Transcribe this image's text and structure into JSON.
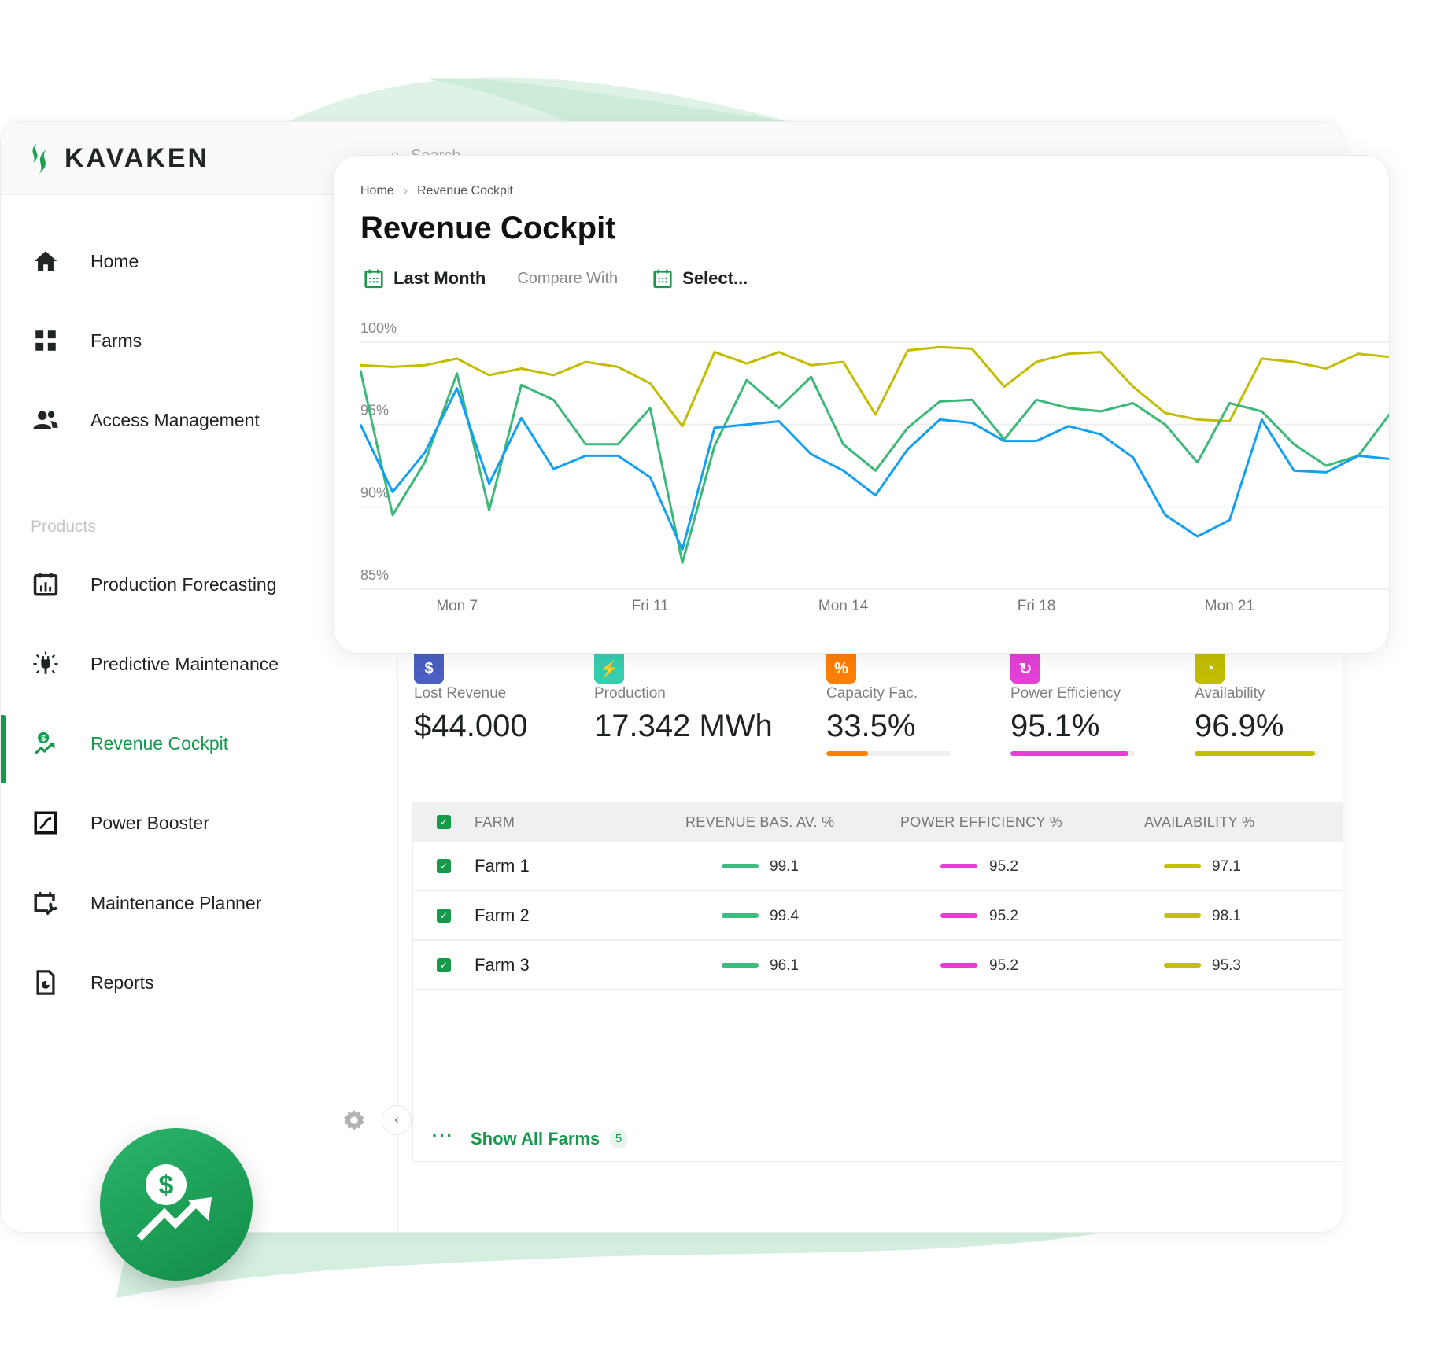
{
  "app": {
    "brand": "KAVAKEN",
    "brand_color": "#159a4c",
    "search_placeholder": "Search"
  },
  "sidebar": {
    "items": [
      {
        "label": "Home",
        "icon": "home-icon"
      },
      {
        "label": "Farms",
        "icon": "grid-icon"
      },
      {
        "label": "Access Management",
        "icon": "users-icon"
      }
    ],
    "section_label": "Products",
    "products": [
      {
        "label": "Production Forecasting",
        "icon": "calendar-chart-icon"
      },
      {
        "label": "Predictive Maintenance",
        "icon": "plug-alert-icon"
      },
      {
        "label": "Revenue Cockpit",
        "icon": "revenue-icon",
        "active": true
      },
      {
        "label": "Power Booster",
        "icon": "booster-icon"
      },
      {
        "label": "Maintenance Planner",
        "icon": "calendar-wrench-icon"
      },
      {
        "label": "Reports",
        "icon": "report-icon"
      }
    ]
  },
  "breadcrumb": [
    "Home",
    "Revenue Cockpit"
  ],
  "page": {
    "title": "Revenue Cockpit"
  },
  "filters": {
    "period": "Last Month",
    "compare_label": "Compare With",
    "compare_value": "Select..."
  },
  "chart_data": {
    "type": "line",
    "x_tick_labels": [
      {
        "index": 3,
        "label": "Mon 7"
      },
      {
        "index": 9,
        "label": "Fri 11"
      },
      {
        "index": 15,
        "label": "Mon 14"
      },
      {
        "index": 21,
        "label": "Fri 18"
      },
      {
        "index": 27,
        "label": "Mon 21"
      }
    ],
    "y_ticks": [
      "100%",
      "95%",
      "90%",
      "85%"
    ],
    "ylim": [
      85,
      100
    ],
    "grid": "horizontal",
    "series": [
      {
        "color": "#c2bd00",
        "values": [
          98.6,
          98.5,
          98.6,
          99.0,
          98.0,
          98.4,
          98.0,
          98.8,
          98.5,
          97.5,
          94.9,
          99.4,
          98.7,
          99.4,
          98.6,
          98.8,
          95.6,
          99.5,
          99.7,
          99.6,
          97.3,
          98.8,
          99.3,
          99.4,
          97.3,
          95.7,
          95.3,
          95.2,
          99.0,
          98.8,
          98.4,
          99.3,
          99.1
        ]
      },
      {
        "color": "#3cb878",
        "values": [
          98.3,
          89.5,
          92.7,
          98.1,
          89.8,
          97.4,
          96.5,
          93.8,
          93.8,
          96.0,
          86.6,
          93.7,
          97.7,
          96.0,
          97.9,
          93.8,
          92.2,
          94.8,
          96.4,
          96.5,
          94.1,
          96.5,
          96.0,
          95.8,
          96.3,
          95.0,
          92.7,
          96.3,
          95.8,
          93.8,
          92.5,
          93.1,
          95.7
        ]
      },
      {
        "color": "#14a0f0",
        "values": [
          95.0,
          90.9,
          93.3,
          97.2,
          91.4,
          95.4,
          92.3,
          93.1,
          93.1,
          91.8,
          87.4,
          94.8,
          95.0,
          95.2,
          93.2,
          92.2,
          90.7,
          93.5,
          95.3,
          95.1,
          94.0,
          94.0,
          94.9,
          94.4,
          93.0,
          89.5,
          88.2,
          89.2,
          95.3,
          92.2,
          92.1,
          93.1,
          92.9
        ]
      }
    ]
  },
  "kpis": [
    {
      "label": "Lost Revenue",
      "value": "$44.000",
      "icon": "dollar-icon",
      "color": "#4a5fc1",
      "glyph": "$"
    },
    {
      "label": "Production",
      "value": "17.342 MWh",
      "icon": "lightning-icon",
      "color": "#35cfb0",
      "glyph": "⚡"
    },
    {
      "label": "Capacity Fac.",
      "value": "33.5%",
      "icon": "percent-icon",
      "color": "#ff7f00",
      "glyph": "%",
      "progress": 33.5
    },
    {
      "label": "Power Efficiency",
      "value": "95.1%",
      "icon": "refresh-icon",
      "color": "#e43fd6",
      "glyph": "↻",
      "progress": 95.1
    },
    {
      "label": "Availability",
      "value": "96.9%",
      "icon": "clock-icon",
      "color": "#c2bd00",
      "glyph": "◔",
      "progress": 96.9
    }
  ],
  "table": {
    "columns": [
      "FARM",
      "REVENUE BAS. AV. %",
      "POWER EFFICIENCY %",
      "AVAILABILITY %"
    ],
    "column_colors": [
      "#3dbd7d",
      "#e63ed4",
      "#c4bf00"
    ],
    "rows": [
      {
        "farm": "Farm 1",
        "revenue": "99.1",
        "power": "95.2",
        "availability": "97.1"
      },
      {
        "farm": "Farm 2",
        "revenue": "99.4",
        "power": "95.2",
        "availability": "98.1"
      },
      {
        "farm": "Farm 3",
        "revenue": "96.1",
        "power": "95.2",
        "availability": "95.3"
      }
    ],
    "show_all_label": "Show All Farms",
    "total_count": "5"
  }
}
